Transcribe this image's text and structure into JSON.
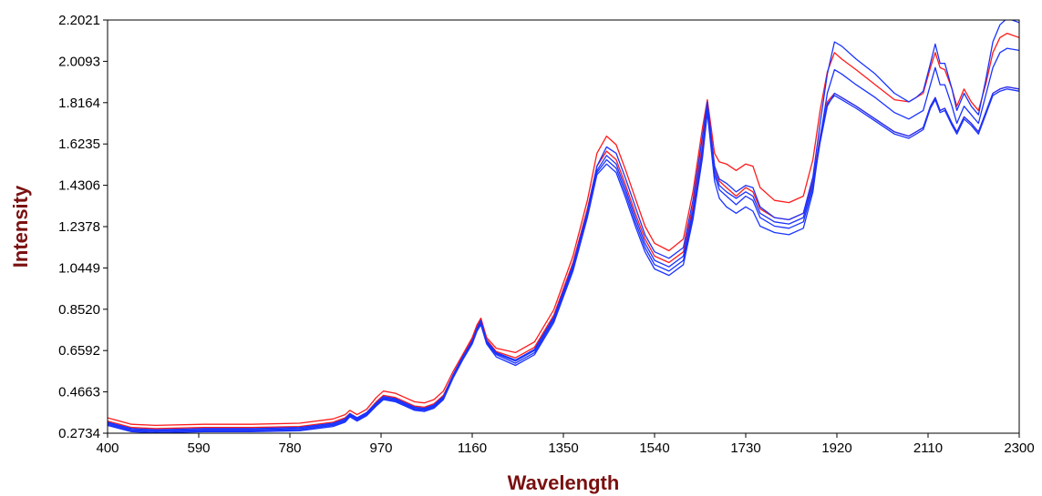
{
  "colors": {
    "axis_title": "#7a1010",
    "series_red": "#ff1a1a",
    "series_blue": "#1a33ff",
    "frame": "#000000"
  },
  "chart_data": {
    "type": "line",
    "xlabel": "Wavelength",
    "ylabel": "Intensity",
    "xlim": [
      400,
      2300
    ],
    "ylim": [
      0.2734,
      2.2021
    ],
    "x_ticks": [
      "400",
      "590",
      "780",
      "970",
      "1160",
      "1350",
      "1540",
      "1730",
      "1920",
      "2110",
      "2300"
    ],
    "y_ticks": [
      "2.2021",
      "2.0093",
      "1.8164",
      "1.6235",
      "1.4306",
      "1.2378",
      "1.0449",
      "0.8520",
      "0.6592",
      "0.4663",
      "0.2734"
    ],
    "grid": false,
    "legend": "none",
    "x": [
      400,
      450,
      500,
      600,
      700,
      800,
      870,
      895,
      905,
      920,
      940,
      960,
      975,
      1000,
      1020,
      1040,
      1060,
      1080,
      1100,
      1120,
      1140,
      1160,
      1170,
      1178,
      1190,
      1210,
      1250,
      1290,
      1330,
      1370,
      1400,
      1420,
      1440,
      1460,
      1480,
      1500,
      1520,
      1540,
      1570,
      1600,
      1620,
      1640,
      1650,
      1658,
      1665,
      1675,
      1690,
      1710,
      1730,
      1745,
      1760,
      1790,
      1820,
      1850,
      1870,
      1885,
      1900,
      1915,
      1930,
      1960,
      2000,
      2040,
      2070,
      2085,
      2100,
      2115,
      2125,
      2135,
      2145,
      2160,
      2170,
      2185,
      2200,
      2215,
      2230,
      2245,
      2260,
      2275,
      2300
    ],
    "series": [
      {
        "color": "red",
        "values": [
          0.345,
          0.315,
          0.31,
          0.315,
          0.315,
          0.32,
          0.34,
          0.36,
          0.38,
          0.36,
          0.385,
          0.44,
          0.47,
          0.46,
          0.44,
          0.42,
          0.415,
          0.43,
          0.47,
          0.56,
          0.64,
          0.72,
          0.78,
          0.81,
          0.72,
          0.67,
          0.65,
          0.7,
          0.85,
          1.1,
          1.36,
          1.58,
          1.66,
          1.62,
          1.5,
          1.37,
          1.24,
          1.16,
          1.125,
          1.18,
          1.4,
          1.7,
          1.83,
          1.7,
          1.58,
          1.54,
          1.53,
          1.5,
          1.53,
          1.52,
          1.42,
          1.36,
          1.35,
          1.38,
          1.55,
          1.78,
          1.96,
          2.05,
          2.02,
          1.97,
          1.9,
          1.83,
          1.82,
          1.84,
          1.86,
          1.98,
          2.05,
          1.98,
          1.97,
          1.88,
          1.8,
          1.88,
          1.82,
          1.78,
          1.9,
          2.05,
          2.12,
          2.14,
          2.12
        ]
      },
      {
        "color": "red",
        "values": [
          0.33,
          0.3,
          0.295,
          0.3,
          0.3,
          0.305,
          0.325,
          0.345,
          0.365,
          0.345,
          0.37,
          0.42,
          0.45,
          0.44,
          0.42,
          0.4,
          0.395,
          0.41,
          0.45,
          0.545,
          0.63,
          0.71,
          0.77,
          0.81,
          0.71,
          0.655,
          0.625,
          0.675,
          0.825,
          1.07,
          1.32,
          1.52,
          1.59,
          1.55,
          1.43,
          1.3,
          1.18,
          1.1,
          1.07,
          1.12,
          1.33,
          1.62,
          1.8,
          1.66,
          1.52,
          1.45,
          1.42,
          1.38,
          1.42,
          1.4,
          1.32,
          1.28,
          1.27,
          1.3,
          1.45,
          1.66,
          1.82,
          1.86,
          1.84,
          1.8,
          1.74,
          1.68,
          1.66,
          1.68,
          1.7,
          1.8,
          1.84,
          1.78,
          1.79,
          1.72,
          1.68,
          1.75,
          1.72,
          1.68,
          1.77,
          1.86,
          1.88,
          1.89,
          1.88
        ]
      },
      {
        "color": "blue",
        "values": [
          0.32,
          0.29,
          0.285,
          0.29,
          0.29,
          0.295,
          0.315,
          0.335,
          0.36,
          0.34,
          0.365,
          0.41,
          0.44,
          0.43,
          0.41,
          0.39,
          0.385,
          0.4,
          0.44,
          0.54,
          0.625,
          0.7,
          0.76,
          0.79,
          0.7,
          0.645,
          0.61,
          0.66,
          0.81,
          1.05,
          1.3,
          1.5,
          1.57,
          1.53,
          1.41,
          1.28,
          1.16,
          1.08,
          1.05,
          1.1,
          1.31,
          1.6,
          1.79,
          1.64,
          1.5,
          1.43,
          1.4,
          1.37,
          1.4,
          1.38,
          1.3,
          1.26,
          1.25,
          1.28,
          1.44,
          1.65,
          1.81,
          1.85,
          1.83,
          1.79,
          1.73,
          1.67,
          1.65,
          1.67,
          1.69,
          1.79,
          1.83,
          1.77,
          1.78,
          1.71,
          1.67,
          1.74,
          1.71,
          1.67,
          1.76,
          1.85,
          1.87,
          1.88,
          1.87
        ]
      },
      {
        "color": "blue",
        "values": [
          0.315,
          0.285,
          0.28,
          0.285,
          0.285,
          0.29,
          0.31,
          0.33,
          0.355,
          0.335,
          0.36,
          0.405,
          0.435,
          0.425,
          0.405,
          0.385,
          0.38,
          0.395,
          0.435,
          0.535,
          0.62,
          0.695,
          0.755,
          0.785,
          0.695,
          0.64,
          0.6,
          0.65,
          0.8,
          1.04,
          1.29,
          1.49,
          1.55,
          1.51,
          1.39,
          1.26,
          1.14,
          1.06,
          1.03,
          1.08,
          1.29,
          1.58,
          1.78,
          1.63,
          1.48,
          1.41,
          1.38,
          1.34,
          1.38,
          1.36,
          1.28,
          1.24,
          1.23,
          1.26,
          1.42,
          1.63,
          1.8,
          1.86,
          1.84,
          1.8,
          1.74,
          1.68,
          1.66,
          1.68,
          1.7,
          1.8,
          1.84,
          1.78,
          1.79,
          1.72,
          1.68,
          1.75,
          1.72,
          1.68,
          1.77,
          1.86,
          1.88,
          1.89,
          1.88
        ]
      },
      {
        "color": "blue",
        "values": [
          0.31,
          0.28,
          0.275,
          0.28,
          0.28,
          0.285,
          0.305,
          0.325,
          0.35,
          0.33,
          0.355,
          0.4,
          0.43,
          0.42,
          0.4,
          0.38,
          0.375,
          0.39,
          0.43,
          0.53,
          0.615,
          0.69,
          0.75,
          0.78,
          0.69,
          0.63,
          0.59,
          0.64,
          0.79,
          1.03,
          1.28,
          1.48,
          1.53,
          1.49,
          1.37,
          1.24,
          1.12,
          1.04,
          1.01,
          1.06,
          1.27,
          1.56,
          1.77,
          1.6,
          1.45,
          1.37,
          1.33,
          1.3,
          1.33,
          1.31,
          1.24,
          1.21,
          1.2,
          1.23,
          1.4,
          1.65,
          1.86,
          1.97,
          1.95,
          1.9,
          1.84,
          1.77,
          1.74,
          1.76,
          1.78,
          1.9,
          1.98,
          1.9,
          1.9,
          1.8,
          1.72,
          1.8,
          1.76,
          1.72,
          1.85,
          1.98,
          2.05,
          2.07,
          2.06
        ]
      },
      {
        "color": "blue",
        "values": [
          0.325,
          0.295,
          0.29,
          0.295,
          0.295,
          0.3,
          0.32,
          0.34,
          0.365,
          0.345,
          0.37,
          0.415,
          0.445,
          0.435,
          0.415,
          0.395,
          0.39,
          0.405,
          0.445,
          0.545,
          0.63,
          0.705,
          0.765,
          0.8,
          0.705,
          0.65,
          0.615,
          0.665,
          0.815,
          1.06,
          1.31,
          1.52,
          1.61,
          1.58,
          1.46,
          1.33,
          1.2,
          1.12,
          1.09,
          1.14,
          1.36,
          1.66,
          1.82,
          1.66,
          1.52,
          1.46,
          1.44,
          1.4,
          1.43,
          1.42,
          1.33,
          1.28,
          1.27,
          1.3,
          1.47,
          1.72,
          1.95,
          2.1,
          2.08,
          2.02,
          1.95,
          1.86,
          1.82,
          1.84,
          1.87,
          2.0,
          2.09,
          2.0,
          2.0,
          1.88,
          1.78,
          1.86,
          1.8,
          1.76,
          1.92,
          2.1,
          2.18,
          2.21,
          2.19
        ]
      }
    ]
  }
}
